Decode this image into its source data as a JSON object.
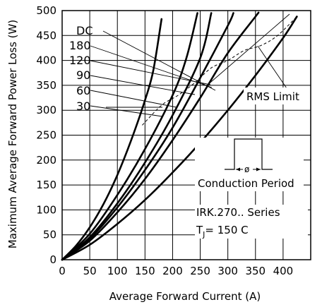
{
  "chart_data": {
    "type": "line",
    "xlabel": "Average Forward Current (A)",
    "ylabel": "Maximum Average Forward Power Loss (W)",
    "xlim": [
      0,
      450
    ],
    "ylim": [
      0,
      500
    ],
    "xticks": [
      0,
      50,
      100,
      150,
      200,
      250,
      300,
      350,
      400
    ],
    "yticks": [
      0,
      50,
      100,
      150,
      200,
      250,
      300,
      350,
      400,
      450,
      500
    ],
    "grid": true,
    "series": [
      {
        "name": "30",
        "x": [
          0,
          25,
          50,
          75,
          100,
          125,
          150,
          165,
          180
        ],
        "y": [
          0,
          28,
          65,
          112,
          170,
          240,
          320,
          380,
          483
        ]
      },
      {
        "name": "60",
        "x": [
          0,
          50,
          100,
          150,
          200,
          225,
          245
        ],
        "y": [
          0,
          52,
          130,
          222,
          330,
          405,
          495
        ]
      },
      {
        "name": "90",
        "x": [
          0,
          50,
          100,
          150,
          200,
          250,
          270
        ],
        "y": [
          0,
          45,
          113,
          195,
          290,
          405,
          495
        ]
      },
      {
        "name": "120",
        "x": [
          0,
          50,
          100,
          150,
          200,
          250,
          300,
          310
        ],
        "y": [
          0,
          42,
          105,
          180,
          265,
          365,
          470,
          495
        ]
      },
      {
        "name": "180",
        "x": [
          0,
          50,
          100,
          150,
          200,
          250,
          300,
          350,
          355
        ],
        "y": [
          0,
          38,
          95,
          162,
          240,
          325,
          415,
          488,
          495
        ]
      },
      {
        "name": "DC",
        "x": [
          0,
          50,
          100,
          150,
          200,
          250,
          300,
          350,
          400,
          425
        ],
        "y": [
          0,
          30,
          72,
          120,
          175,
          235,
          300,
          370,
          445,
          488
        ]
      }
    ],
    "rms_limit": {
      "x": [
        145,
        180,
        210,
        240,
        270,
        300,
        330,
        360,
        390,
        425
      ],
      "y": [
        270,
        310,
        330,
        355,
        385,
        400,
        420,
        430,
        450,
        488
      ]
    },
    "annotations": {
      "rms_label": "RMS Limit",
      "conduction_label": "Conduction Period",
      "conduction_symbol": "ø",
      "series_line1": "IRK.270.. Series",
      "series_line2_prefix": "T",
      "series_line2_sub": "J",
      "series_line2_suffix": "= 150 C"
    }
  }
}
